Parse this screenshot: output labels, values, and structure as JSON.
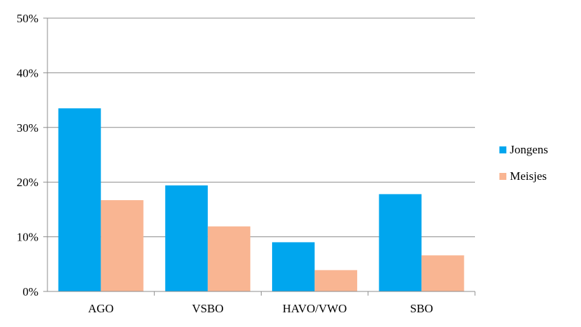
{
  "chart_data": {
    "type": "bar",
    "categories": [
      "AGO",
      "VSBO",
      "HAVO/VWO",
      "SBO"
    ],
    "series": [
      {
        "name": "Jongens",
        "values": [
          33.5,
          19.4,
          9.0,
          17.8
        ],
        "color": "#00a6ee"
      },
      {
        "name": "Meisjes",
        "values": [
          16.7,
          11.9,
          3.9,
          6.6
        ],
        "color": "#f9b592"
      }
    ],
    "ylim": [
      0,
      50
    ],
    "yticks": [
      "0%",
      "10%",
      "20%",
      "30%",
      "40%",
      "50%"
    ],
    "grid": true,
    "legend": "right",
    "title": "",
    "xlabel": "",
    "ylabel": ""
  }
}
